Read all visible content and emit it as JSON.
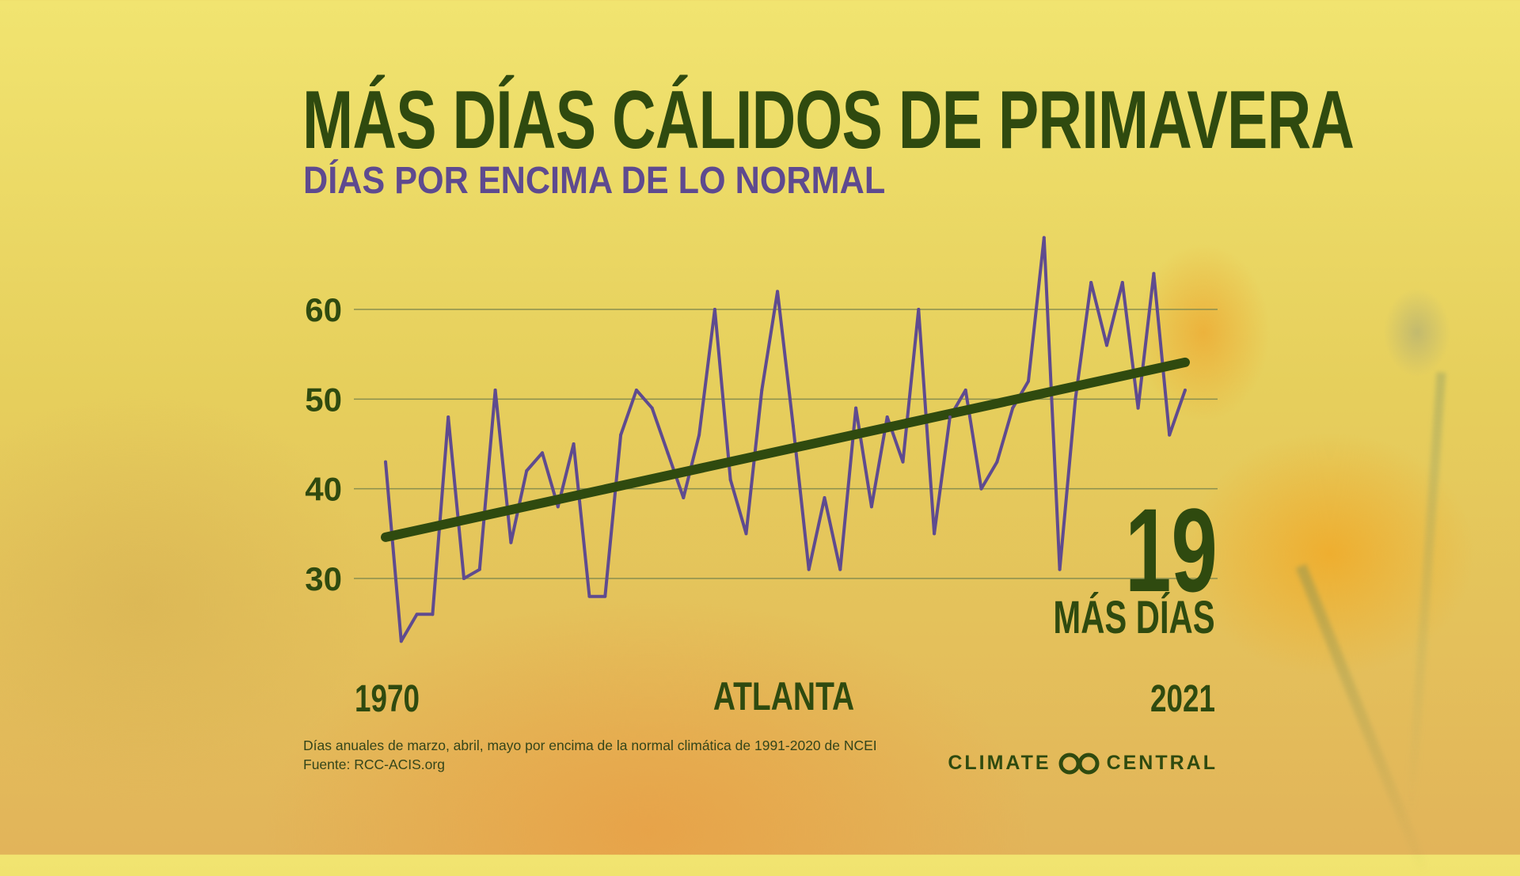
{
  "header": {
    "title": "MÁS DÍAS CÁLIDOS DE PRIMAVERA",
    "subtitle": "DÍAS POR ENCIMA DE LO NORMAL"
  },
  "callout": {
    "value": "19",
    "label": "MÁS DÍAS"
  },
  "location": "ATLANTA",
  "footnote": {
    "line1": "Días anuales de marzo, abril, mayo por encima de la normal climática de 1991-2020 de NCEI",
    "line2": "Fuente: RCC-ACIS.org"
  },
  "brand": {
    "left": "CLIMATE",
    "right": "CENTRAL",
    "logo_icon": "climate-central-logo-icon"
  },
  "colors": {
    "series": "#5f4b8f",
    "trend": "#2f4a0f",
    "text_dark": "#2f4a0f",
    "subtitle": "#5e4a8f",
    "grid": "#8a8f4e"
  },
  "chart_data": {
    "type": "line",
    "title": "MÁS DÍAS CÁLIDOS DE PRIMAVERA",
    "subtitle": "DÍAS POR ENCIMA DE LO NORMAL",
    "xlabel": "ATLANTA",
    "ylabel": "",
    "xlim": [
      1970,
      2021
    ],
    "ylim": [
      20,
      70
    ],
    "yticks": [
      30,
      40,
      50,
      60
    ],
    "ytick_labels": [
      "30",
      "40",
      "50",
      "60"
    ],
    "xtick_labels": [
      "1970",
      "2021"
    ],
    "grid": true,
    "x": [
      1970,
      1971,
      1972,
      1973,
      1974,
      1975,
      1976,
      1977,
      1978,
      1979,
      1980,
      1981,
      1982,
      1983,
      1984,
      1985,
      1986,
      1987,
      1988,
      1989,
      1990,
      1991,
      1992,
      1993,
      1994,
      1995,
      1996,
      1997,
      1998,
      1999,
      2000,
      2001,
      2002,
      2003,
      2004,
      2005,
      2006,
      2007,
      2008,
      2009,
      2010,
      2011,
      2012,
      2013,
      2014,
      2015,
      2016,
      2017,
      2018,
      2019,
      2020,
      2021
    ],
    "values": [
      43,
      23,
      26,
      26,
      48,
      30,
      31,
      51,
      34,
      42,
      44,
      38,
      45,
      28,
      28,
      46,
      51,
      49,
      44,
      39,
      46,
      60,
      41,
      35,
      51,
      62,
      47,
      31,
      39,
      31,
      49,
      38,
      48,
      43,
      60,
      35,
      48,
      51,
      40,
      43,
      49,
      52,
      68,
      31,
      50,
      63,
      56,
      63,
      49,
      64,
      46,
      51
    ],
    "trend": {
      "start": [
        1970,
        34.6
      ],
      "end": [
        2021,
        54.1
      ]
    }
  }
}
